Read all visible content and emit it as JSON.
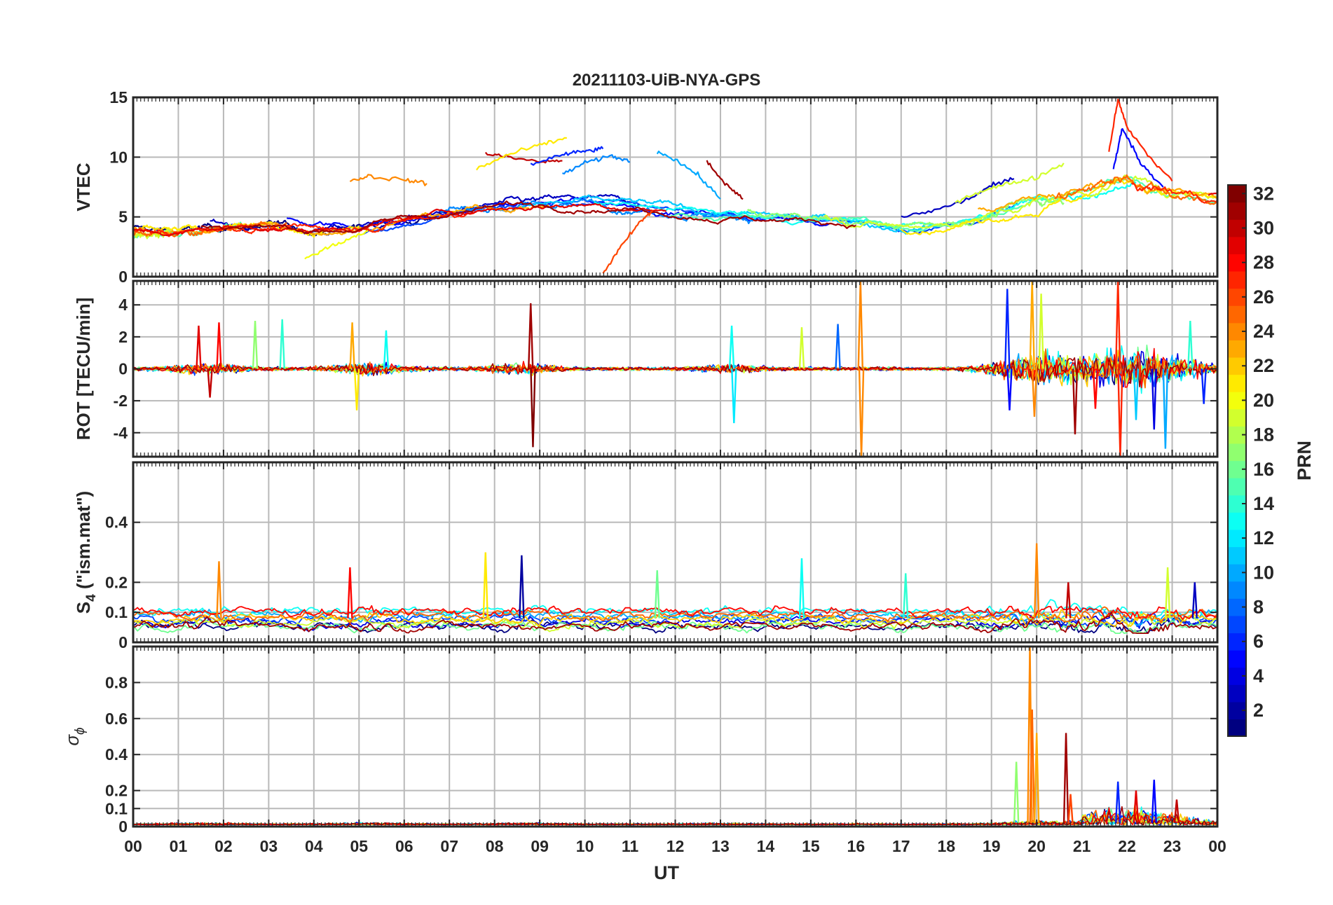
{
  "figure": {
    "title": "20211103-UiB-NYA-GPS",
    "xlabel": "UT"
  },
  "chart_data": [
    {
      "id": "vtec",
      "type": "line",
      "title": "20211103-UiB-NYA-GPS",
      "ylabel": "VTEC",
      "xlabel": "",
      "xlim": [
        0,
        24
      ],
      "ylim": [
        0,
        15
      ],
      "yticks": [
        0,
        5,
        10,
        15
      ],
      "grid": true,
      "colorbar": "PRN",
      "baseline": [
        [
          0,
          3.8
        ],
        [
          1,
          3.6
        ],
        [
          2,
          4.1
        ],
        [
          3,
          4.2
        ],
        [
          4,
          3.9
        ],
        [
          5,
          4.2
        ],
        [
          6,
          4.8
        ],
        [
          7,
          5.3
        ],
        [
          8,
          5.8
        ],
        [
          9,
          6.0
        ],
        [
          10,
          6.2
        ],
        [
          11,
          6.0
        ],
        [
          12,
          5.6
        ],
        [
          13,
          5.3
        ],
        [
          14,
          5.0
        ],
        [
          15,
          4.8
        ],
        [
          16,
          4.6
        ],
        [
          17,
          4.2
        ],
        [
          18,
          4.5
        ],
        [
          19,
          5.2
        ],
        [
          20,
          6.2
        ],
        [
          21,
          7.0
        ],
        [
          22,
          8.5
        ],
        [
          23,
          7.3
        ],
        [
          24,
          6.5
        ]
      ],
      "series": [
        {
          "prn": 30,
          "values": [
            [
              7.8,
              10.3
            ],
            [
              8.3,
              10.0
            ],
            [
              9.0,
              9.6
            ],
            [
              9.5,
              9.7
            ]
          ]
        },
        {
          "prn": 21,
          "values": [
            [
              7.6,
              9.0
            ],
            [
              8.3,
              10.2
            ],
            [
              9.0,
              11.0
            ],
            [
              9.6,
              11.6
            ]
          ]
        },
        {
          "prn": 6,
          "values": [
            [
              8.8,
              9.4
            ],
            [
              9.5,
              10.2
            ],
            [
              10.0,
              10.5
            ],
            [
              10.4,
              10.7
            ]
          ]
        },
        {
          "prn": 9,
          "values": [
            [
              9.5,
              8.6
            ],
            [
              10.0,
              9.5
            ],
            [
              10.6,
              10.1
            ],
            [
              11.0,
              9.6
            ]
          ]
        },
        {
          "prn": 10,
          "values": [
            [
              11.6,
              10.5
            ],
            [
              12.0,
              9.8
            ],
            [
              12.5,
              8.5
            ],
            [
              13.0,
              6.5
            ]
          ]
        },
        {
          "prn": 26,
          "values": [
            [
              10.4,
              0.3
            ],
            [
              10.8,
              2.5
            ],
            [
              11.2,
              4.5
            ],
            [
              11.5,
              5.5
            ]
          ]
        },
        {
          "prn": 3,
          "values": [
            [
              17.0,
              5.0
            ],
            [
              17.8,
              5.6
            ],
            [
              18.5,
              6.5
            ],
            [
              19.0,
              7.6
            ],
            [
              19.5,
              8.2
            ]
          ]
        },
        {
          "prn": 19,
          "values": [
            [
              18.2,
              6.3
            ],
            [
              18.8,
              7.2
            ],
            [
              19.4,
              7.8
            ],
            [
              20.0,
              8.3
            ],
            [
              20.6,
              9.5
            ]
          ]
        },
        {
          "prn": 24,
          "values": [
            [
              4.8,
              8.0
            ],
            [
              5.2,
              8.4
            ],
            [
              6.0,
              8.1
            ],
            [
              6.5,
              7.8
            ]
          ]
        },
        {
          "prn": 20,
          "values": [
            [
              3.8,
              1.5
            ],
            [
              4.3,
              2.4
            ],
            [
              4.8,
              3.2
            ],
            [
              5.2,
              3.8
            ]
          ]
        },
        {
          "prn": 31,
          "values": [
            [
              12.7,
              9.6
            ],
            [
              13.1,
              7.8
            ],
            [
              13.5,
              6.5
            ]
          ]
        },
        {
          "prn": 27,
          "values": [
            [
              21.6,
              10.5
            ],
            [
              21.8,
              14.8
            ],
            [
              22.0,
              12.5
            ],
            [
              22.5,
              10.0
            ],
            [
              23.0,
              8.0
            ]
          ]
        },
        {
          "prn": 5,
          "values": [
            [
              21.7,
              9.0
            ],
            [
              21.9,
              12.5
            ],
            [
              22.3,
              9.5
            ],
            [
              22.8,
              7.5
            ]
          ]
        }
      ]
    },
    {
      "id": "rot",
      "type": "line",
      "ylabel": "ROT [TECU/min]",
      "xlabel": "",
      "xlim": [
        0,
        24
      ],
      "ylim": [
        -5.5,
        5.5
      ],
      "yticks": [
        -4,
        -2,
        0,
        2,
        4
      ],
      "grid": true,
      "spikes": [
        {
          "x": 1.45,
          "y": 2.7,
          "prn": 29
        },
        {
          "x": 1.7,
          "y": -1.8,
          "prn": 30
        },
        {
          "x": 1.9,
          "y": 2.9,
          "prn": 28
        },
        {
          "x": 2.7,
          "y": 3.0,
          "prn": 17
        },
        {
          "x": 3.3,
          "y": 3.1,
          "prn": 14
        },
        {
          "x": 4.85,
          "y": 2.9,
          "prn": 23
        },
        {
          "x": 4.95,
          "y": -2.6,
          "prn": 21
        },
        {
          "x": 5.6,
          "y": 2.4,
          "prn": 13
        },
        {
          "x": 8.8,
          "y": 4.1,
          "prn": 31
        },
        {
          "x": 8.85,
          "y": -4.9,
          "prn": 32
        },
        {
          "x": 13.25,
          "y": 2.7,
          "prn": 13
        },
        {
          "x": 13.3,
          "y": -3.4,
          "prn": 12
        },
        {
          "x": 14.8,
          "y": 2.6,
          "prn": 19
        },
        {
          "x": 15.6,
          "y": 2.8,
          "prn": 8
        },
        {
          "x": 16.1,
          "y": 5.5,
          "prn": 24
        },
        {
          "x": 16.12,
          "y": -5.5,
          "prn": 24
        },
        {
          "x": 19.35,
          "y": 5.0,
          "prn": 6
        },
        {
          "x": 19.4,
          "y": -2.6,
          "prn": 5
        },
        {
          "x": 19.9,
          "y": 5.5,
          "prn": 23
        },
        {
          "x": 19.95,
          "y": -3.0,
          "prn": 24
        },
        {
          "x": 20.1,
          "y": 4.7,
          "prn": 19
        },
        {
          "x": 20.85,
          "y": -4.1,
          "prn": 31
        },
        {
          "x": 21.3,
          "y": -2.5,
          "prn": 28
        },
        {
          "x": 21.8,
          "y": 5.5,
          "prn": 27
        },
        {
          "x": 21.85,
          "y": -5.5,
          "prn": 27
        },
        {
          "x": 22.2,
          "y": -3.2,
          "prn": 11
        },
        {
          "x": 22.6,
          "y": -3.8,
          "prn": 4
        },
        {
          "x": 22.85,
          "y": -5.0,
          "prn": 10
        },
        {
          "x": 23.4,
          "y": 3.0,
          "prn": 14
        },
        {
          "x": 23.7,
          "y": -2.2,
          "prn": 6
        }
      ]
    },
    {
      "id": "s4",
      "type": "line",
      "ylabel": "S",
      "ylabel_sub": "4",
      "ylabel_suffix": " (\"ism.mat\")",
      "xlabel": "",
      "xlim": [
        0,
        24
      ],
      "ylim": [
        0,
        0.6
      ],
      "yticks": [
        0,
        0.1,
        0.2,
        0.4
      ],
      "ytick_labels": [
        "0",
        "0.1",
        "0.2",
        "0.4"
      ],
      "grid": true,
      "spikes": [
        {
          "x": 1.9,
          "y": 0.27,
          "prn": 24
        },
        {
          "x": 4.8,
          "y": 0.25,
          "prn": 28
        },
        {
          "x": 7.8,
          "y": 0.3,
          "prn": 21
        },
        {
          "x": 8.6,
          "y": 0.29,
          "prn": 2
        },
        {
          "x": 11.6,
          "y": 0.24,
          "prn": 16
        },
        {
          "x": 14.8,
          "y": 0.28,
          "prn": 13
        },
        {
          "x": 17.1,
          "y": 0.23,
          "prn": 14
        },
        {
          "x": 20.0,
          "y": 0.33,
          "prn": 24
        },
        {
          "x": 20.7,
          "y": 0.2,
          "prn": 30
        },
        {
          "x": 22.9,
          "y": 0.25,
          "prn": 19
        },
        {
          "x": 23.5,
          "y": 0.2,
          "prn": 3
        }
      ]
    },
    {
      "id": "sigma_phi",
      "type": "line",
      "ylabel": "σ",
      "ylabel_sub": "ϕ",
      "xlabel": "UT",
      "xlim": [
        0,
        24
      ],
      "ylim": [
        0,
        1
      ],
      "yticks": [
        0,
        0.1,
        0.2,
        0.4,
        0.6,
        0.8
      ],
      "ytick_labels": [
        "0",
        "0.1",
        "0.2",
        "0.4",
        "0.6",
        "0.8"
      ],
      "xticks": [
        0,
        1,
        2,
        3,
        4,
        5,
        6,
        7,
        8,
        9,
        10,
        11,
        12,
        13,
        14,
        15,
        16,
        17,
        18,
        19,
        20,
        21,
        22,
        23,
        24
      ],
      "xtick_labels": [
        "00",
        "01",
        "02",
        "03",
        "04",
        "05",
        "06",
        "07",
        "08",
        "09",
        "10",
        "11",
        "12",
        "13",
        "14",
        "15",
        "16",
        "17",
        "18",
        "19",
        "20",
        "21",
        "22",
        "23",
        "00"
      ],
      "grid": true,
      "spikes": [
        {
          "x": 19.55,
          "y": 0.36,
          "prn": 17
        },
        {
          "x": 19.85,
          "y": 1.0,
          "prn": 24
        },
        {
          "x": 19.9,
          "y": 0.65,
          "prn": 25
        },
        {
          "x": 20.0,
          "y": 0.52,
          "prn": 23
        },
        {
          "x": 20.65,
          "y": 0.52,
          "prn": 31
        },
        {
          "x": 20.75,
          "y": 0.18,
          "prn": 26
        },
        {
          "x": 21.8,
          "y": 0.25,
          "prn": 6
        },
        {
          "x": 22.6,
          "y": 0.26,
          "prn": 5
        },
        {
          "x": 22.2,
          "y": 0.2,
          "prn": 29
        },
        {
          "x": 23.1,
          "y": 0.15,
          "prn": 30
        }
      ]
    }
  ],
  "colorbar": {
    "label": "PRN",
    "min": 1,
    "max": 32,
    "ticks": [
      "2",
      "4",
      "6",
      "8",
      "10",
      "12",
      "14",
      "16",
      "18",
      "20",
      "22",
      "24",
      "26",
      "28",
      "30",
      "32"
    ],
    "colormap": "jet"
  }
}
